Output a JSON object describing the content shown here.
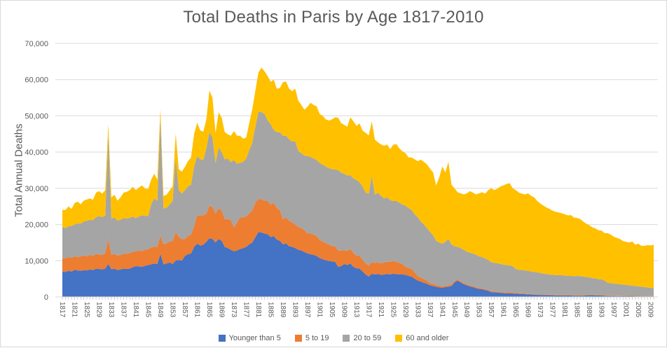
{
  "title": "Total Deaths in Paris by Age 1817-2010",
  "y_axis": {
    "title": "Total Annual Deaths",
    "labels": [
      "0",
      "10,000",
      "20,000",
      "30,000",
      "40,000",
      "50,000",
      "60,000",
      "70,000"
    ]
  },
  "x_axis": {
    "labels": [
      "1817",
      "1821",
      "1825",
      "1829",
      "1833",
      "1837",
      "1841",
      "1845",
      "1849",
      "1853",
      "1857",
      "1861",
      "1865",
      "1869",
      "1873",
      "1877",
      "1881",
      "1885",
      "1889",
      "1893",
      "1897",
      "1901",
      "1905",
      "1909",
      "1913",
      "1917",
      "1921",
      "1925",
      "1929",
      "1933",
      "1937",
      "1941",
      "1945",
      "1949",
      "1953",
      "1957",
      "1961",
      "1965",
      "1969",
      "1973",
      "1977",
      "1981",
      "1985",
      "1989",
      "1993",
      "1997",
      "2001",
      "2005",
      "2009"
    ]
  },
  "legend": [
    {
      "label": "Younger than 5",
      "color": "#4472C4"
    },
    {
      "label": "5 to 19",
      "color": "#ED7D31"
    },
    {
      "label": "20 to 59",
      "color": "#A5A5A5"
    },
    {
      "label": "60 and older",
      "color": "#FFC000"
    }
  ],
  "colors": {
    "text": "#595959",
    "gridline": "#D9D9D9",
    "tick": "#BFBFBF",
    "background": "#FFFFFF"
  },
  "chart_data": {
    "type": "area",
    "stacked": true,
    "title": "Total Deaths in Paris by Age 1817-2010",
    "ylabel": "Total Annual Deaths",
    "xlabel": "",
    "x_start": 1817,
    "x_end": 2010,
    "ylim": [
      0,
      70000
    ],
    "y_tick_step": 10000,
    "grid": true,
    "legend_position": "bottom",
    "series": [
      {
        "name": "Younger than 5",
        "color": "#4472C4",
        "values": [
          7000,
          6900,
          7200,
          7000,
          7500,
          7300,
          7200,
          7400,
          7300,
          7600,
          7400,
          7800,
          7700,
          7600,
          7800,
          9100,
          7600,
          7800,
          7400,
          7600,
          7800,
          7700,
          7800,
          8200,
          8500,
          8400,
          8300,
          8600,
          8800,
          9000,
          9200,
          9100,
          11900,
          9000,
          9200,
          9500,
          9100,
          10000,
          10200,
          10000,
          11300,
          11800,
          12000,
          13800,
          14700,
          14200,
          14400,
          15200,
          16200,
          16000,
          15000,
          16000,
          15500,
          13800,
          13500,
          13000,
          12600,
          12800,
          13200,
          13500,
          13800,
          14500,
          15000,
          16500,
          17900,
          17800,
          17500,
          17300,
          16500,
          16800,
          15800,
          15500,
          14500,
          14800,
          14000,
          13800,
          13500,
          13000,
          12800,
          12400,
          12000,
          11800,
          11600,
          11300,
          10700,
          10400,
          10100,
          9900,
          9800,
          9700,
          8300,
          8500,
          9100,
          8800,
          9200,
          8300,
          7900,
          7800,
          7000,
          6200,
          5600,
          6400,
          6200,
          6300,
          6100,
          6200,
          6300,
          6200,
          6400,
          6300,
          6200,
          6200,
          6100,
          5800,
          5600,
          5000,
          4500,
          4200,
          3900,
          3600,
          3200,
          3000,
          2800,
          2600,
          2560,
          2700,
          2800,
          3000,
          4000,
          4500,
          4000,
          3500,
          3200,
          2900,
          2700,
          2400,
          2200,
          2100,
          1900,
          1700,
          1300,
          1250,
          1200,
          1100,
          1050,
          1000,
          1000,
          950,
          900,
          850,
          800,
          750,
          700,
          650,
          600,
          550,
          550,
          500,
          500,
          450,
          450,
          400,
          400,
          400,
          400,
          380,
          380,
          350,
          350,
          350,
          350,
          400,
          450,
          450,
          400,
          400,
          400,
          300,
          250,
          250,
          250,
          230,
          220,
          200,
          200,
          190,
          190,
          180,
          180,
          170,
          170,
          160,
          160,
          160
        ]
      },
      {
        "name": "5 to 19",
        "color": "#ED7D31",
        "values": [
          3700,
          3700,
          3800,
          3800,
          3700,
          3700,
          4000,
          4000,
          3900,
          4000,
          3900,
          4100,
          4000,
          4000,
          4200,
          6900,
          4000,
          4100,
          4000,
          4000,
          4200,
          4200,
          4300,
          4200,
          4100,
          4400,
          4400,
          4400,
          4400,
          4600,
          4700,
          4700,
          5100,
          5500,
          5600,
          5800,
          6300,
          7900,
          6300,
          6000,
          4700,
          5000,
          5200,
          5700,
          7800,
          8300,
          8100,
          7800,
          9000,
          8800,
          8000,
          8500,
          8300,
          7700,
          8000,
          8200,
          6600,
          7700,
          8800,
          8500,
          8400,
          8500,
          9000,
          9500,
          9100,
          9200,
          9000,
          9200,
          9000,
          9200,
          8700,
          8500,
          6900,
          7200,
          7000,
          6800,
          6500,
          6300,
          6200,
          6100,
          5500,
          5700,
          5600,
          5500,
          5000,
          4900,
          4700,
          4600,
          4200,
          4300,
          4500,
          4300,
          3800,
          3900,
          4000,
          3900,
          3400,
          3500,
          3300,
          3000,
          3000,
          3200,
          3200,
          3200,
          3200,
          3300,
          3400,
          3500,
          3500,
          3400,
          3200,
          2900,
          2200,
          2200,
          2100,
          1800,
          1200,
          1100,
          1000,
          900,
          600,
          600,
          500,
          500,
          340,
          400,
          400,
          400,
          400,
          300,
          300,
          300,
          300,
          300,
          300,
          300,
          300,
          250,
          250,
          250,
          300,
          250,
          250,
          250,
          250,
          250,
          250,
          250,
          200,
          200,
          200,
          200,
          200,
          150,
          150,
          150,
          150,
          150,
          150,
          150,
          150,
          150,
          150,
          150,
          150,
          150,
          150,
          150,
          150,
          150,
          150,
          150,
          150,
          150,
          150,
          150,
          150,
          150,
          150,
          150,
          150,
          120,
          120,
          120,
          120,
          110,
          110,
          110,
          100,
          100,
          100,
          100,
          90,
          90
        ]
      },
      {
        "name": "20 to 59",
        "color": "#A5A5A5",
        "values": [
          8600,
          8400,
          8500,
          8800,
          8800,
          9300,
          9000,
          9400,
          9800,
          9700,
          9900,
          10100,
          10600,
          10400,
          10500,
          29000,
          9900,
          10100,
          9600,
          9700,
          9800,
          9700,
          9700,
          9800,
          9100,
          9400,
          9800,
          9400,
          9100,
          12000,
          13300,
          12700,
          32400,
          9900,
          9800,
          10200,
          11100,
          20500,
          13000,
          12500,
          13500,
          13700,
          13800,
          16500,
          16400,
          15500,
          15300,
          18000,
          20300,
          19200,
          13900,
          16800,
          16200,
          16500,
          16700,
          16000,
          18600,
          16300,
          15000,
          15300,
          16000,
          17500,
          18600,
          21000,
          24200,
          24000,
          24000,
          22200,
          22200,
          20100,
          21000,
          21500,
          23100,
          22500,
          22500,
          22300,
          23000,
          21000,
          20700,
          20500,
          21400,
          21200,
          21000,
          21000,
          21300,
          21200,
          21200,
          21000,
          21300,
          21200,
          22200,
          21500,
          21100,
          20800,
          20400,
          20500,
          21000,
          20400,
          20100,
          19600,
          19900,
          23800,
          18800,
          19300,
          18600,
          17700,
          17800,
          17000,
          16600,
          16800,
          16600,
          16400,
          16900,
          16500,
          16300,
          16000,
          16300,
          15500,
          15100,
          14500,
          14200,
          13400,
          12200,
          11900,
          11800,
          12100,
          12800,
          11100,
          9600,
          9000,
          9200,
          9200,
          9000,
          9000,
          9000,
          8900,
          8700,
          8650,
          8450,
          8250,
          8000,
          7900,
          7850,
          7750,
          7600,
          7550,
          7450,
          7300,
          6600,
          6450,
          6400,
          6350,
          6300,
          6200,
          6150,
          6100,
          5900,
          5750,
          5650,
          5600,
          5500,
          5500,
          5450,
          5450,
          5350,
          5270,
          5270,
          5200,
          5300,
          5200,
          5100,
          4950,
          4800,
          4600,
          4550,
          4350,
          4250,
          4050,
          3500,
          3400,
          3300,
          3250,
          3160,
          3080,
          2980,
          2900,
          2800,
          2710,
          2620,
          2530,
          2430,
          2340,
          2250,
          2150
        ]
      },
      {
        "name": "60 and older",
        "color": "#FFC000",
        "values": [
          4700,
          5000,
          5500,
          4700,
          5900,
          6000,
          5400,
          5800,
          5900,
          5900,
          5600,
          6800,
          6900,
          6500,
          7000,
          2600,
          6000,
          6200,
          5600,
          6200,
          7000,
          7400,
          7700,
          8200,
          7800,
          8000,
          8300,
          7500,
          7500,
          6800,
          6800,
          5900,
          2500,
          3500,
          3600,
          3900,
          4000,
          6700,
          5800,
          6100,
          6400,
          7000,
          7500,
          9000,
          9200,
          8000,
          7800,
          8000,
          11500,
          11000,
          8300,
          9700,
          9500,
          7500,
          6700,
          7300,
          8000,
          7700,
          7500,
          6400,
          5800,
          7500,
          9300,
          10000,
          10800,
          12300,
          11800,
          12300,
          11700,
          13900,
          12000,
          12200,
          14800,
          15000,
          14000,
          13900,
          14500,
          13900,
          13300,
          12700,
          13600,
          14900,
          14800,
          14800,
          13500,
          13500,
          13000,
          13200,
          13700,
          14400,
          14500,
          13700,
          13500,
          13500,
          16000,
          15800,
          14900,
          16200,
          15500,
          16500,
          16100,
          15100,
          15200,
          13900,
          14200,
          14500,
          14600,
          14100,
          15500,
          15700,
          15000,
          14700,
          14500,
          14000,
          14500,
          15200,
          15500,
          17100,
          17300,
          17600,
          17400,
          17400,
          15300,
          18000,
          21300,
          19200,
          21300,
          16500,
          16000,
          15100,
          15100,
          15300,
          16100,
          17000,
          16800,
          16700,
          17400,
          17900,
          17900,
          19300,
          20400,
          20100,
          20600,
          21400,
          21900,
          22400,
          22700,
          21500,
          21800,
          21300,
          21100,
          21000,
          21400,
          20900,
          20600,
          19700,
          19200,
          18800,
          18400,
          18100,
          17700,
          17450,
          17300,
          17100,
          16900,
          16700,
          16800,
          16200,
          16000,
          15800,
          15200,
          14700,
          14400,
          14000,
          13800,
          13500,
          13500,
          13100,
          13700,
          13400,
          12900,
          12700,
          12500,
          12000,
          11900,
          11800,
          12200,
          11400,
          11800,
          11300,
          11400,
          11700,
          11700,
          12000
        ]
      }
    ]
  }
}
